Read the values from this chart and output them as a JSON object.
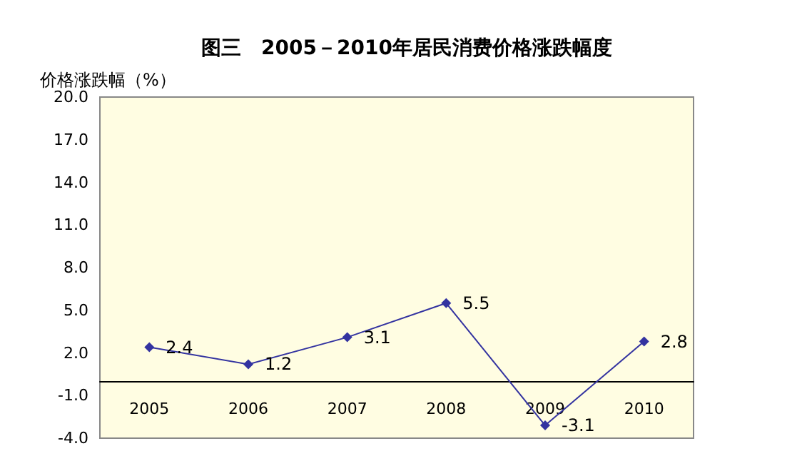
{
  "chart_data": {
    "type": "line",
    "title": "图三　2005－2010年居民消费价格涨跌幅度",
    "ylabel": "价格涨跌幅（%）",
    "categories": [
      "2005",
      "2006",
      "2007",
      "2008",
      "2009",
      "2010"
    ],
    "series": [
      {
        "color": "#3333a0",
        "values": [
          2.4,
          1.2,
          3.1,
          5.5,
          -3.1,
          2.8
        ]
      }
    ],
    "ylim": [
      -4,
      20
    ],
    "yticks": [
      {
        "value": -4,
        "label": "-4.0"
      },
      {
        "value": -1,
        "label": "-1.0"
      },
      {
        "value": 2,
        "label": "2.0"
      },
      {
        "value": 5,
        "label": "5.0"
      },
      {
        "value": 8,
        "label": "8.0"
      },
      {
        "value": 11,
        "label": "11.0"
      },
      {
        "value": 14,
        "label": "14.0"
      },
      {
        "value": 17,
        "label": "17.0"
      },
      {
        "value": 20,
        "label": "20.0"
      }
    ],
    "data_labels": true,
    "marker": "diamond",
    "line_style": "solid",
    "grid": false
  }
}
